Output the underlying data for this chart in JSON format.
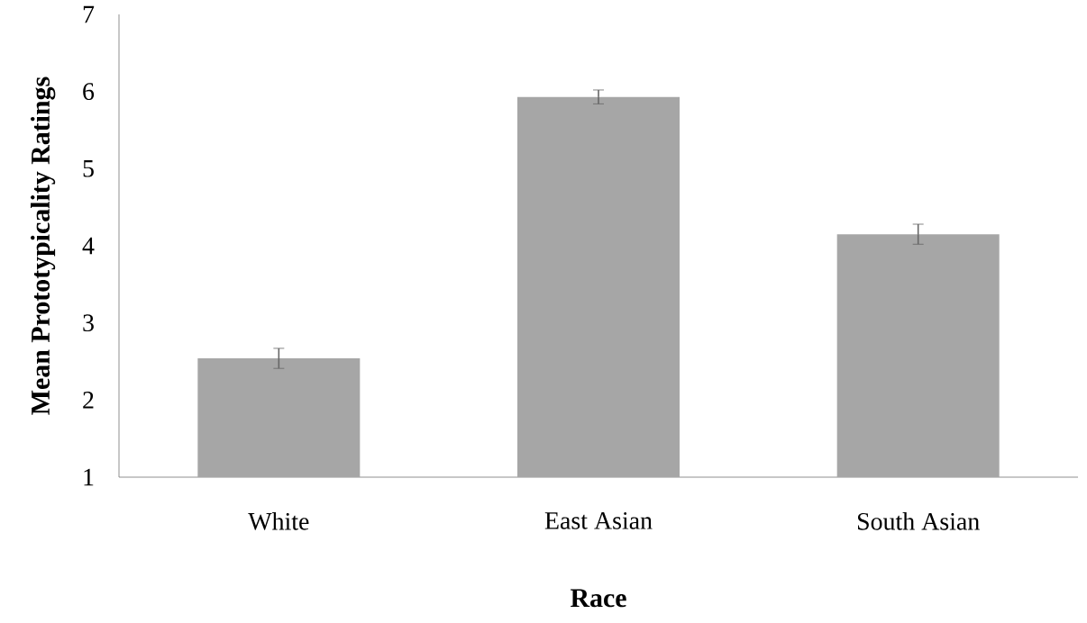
{
  "chart_data": {
    "type": "bar",
    "xlabel": "Race",
    "ylabel": "Mean Prototypicality Ratings",
    "categories": [
      "White",
      "East Asian",
      "South Asian"
    ],
    "values": [
      2.54,
      5.93,
      4.15
    ],
    "errors": [
      0.13,
      0.09,
      0.13
    ],
    "color": "#a6a6a6",
    "ylim": [
      1,
      7
    ],
    "yticks": [
      1,
      2,
      3,
      4,
      5,
      6,
      7
    ],
    "grid": false
  }
}
